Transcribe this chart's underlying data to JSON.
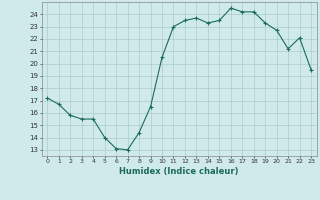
{
  "x": [
    0,
    1,
    2,
    3,
    4,
    5,
    6,
    7,
    8,
    9,
    10,
    11,
    12,
    13,
    14,
    15,
    16,
    17,
    18,
    19,
    20,
    21,
    22,
    23
  ],
  "y": [
    17.2,
    16.7,
    15.8,
    15.5,
    15.5,
    14.0,
    13.1,
    13.0,
    14.4,
    16.5,
    20.5,
    23.0,
    23.5,
    23.7,
    23.3,
    23.5,
    24.5,
    24.2,
    24.2,
    23.3,
    22.7,
    21.2,
    22.1,
    19.5
  ],
  "line_color": "#1a6b5a",
  "marker": "+",
  "marker_size": 3,
  "xlabel": "Humidex (Indice chaleur)",
  "bg_color": "#d0eaec",
  "grid_color": "#aacccc",
  "ylim": [
    12.5,
    25.0
  ],
  "xlim": [
    -0.5,
    23.5
  ],
  "yticks": [
    13,
    14,
    15,
    16,
    17,
    18,
    19,
    20,
    21,
    22,
    23,
    24
  ],
  "xticks": [
    0,
    1,
    2,
    3,
    4,
    5,
    6,
    7,
    8,
    9,
    10,
    11,
    12,
    13,
    14,
    15,
    16,
    17,
    18,
    19,
    20,
    21,
    22,
    23
  ]
}
